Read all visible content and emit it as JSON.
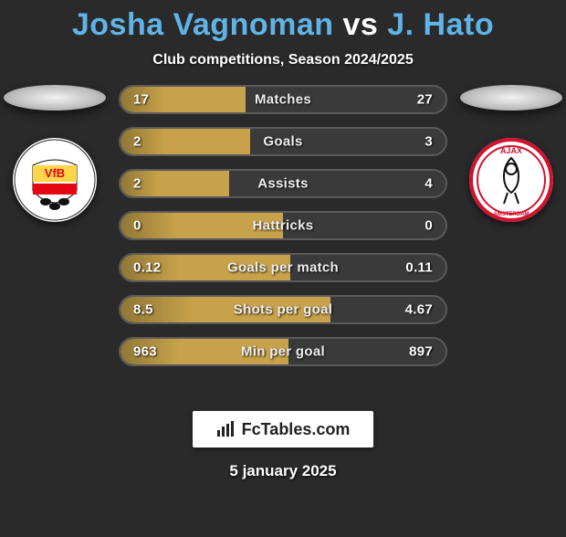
{
  "title": {
    "player1": "Josha Vagnoman",
    "vs": "vs",
    "player2": "J. Hato",
    "fontsize": 34
  },
  "subtitle": {
    "text": "Club competitions, Season 2024/2025",
    "fontsize": 16
  },
  "colors": {
    "background": "#2a2a2a",
    "title_accent": "#5fb3e6",
    "bar_border": "#5a5a5a",
    "seg_left_main": "#c7a24a",
    "seg_left_dark": "#8f7736",
    "seg_right": "#3a3a3a",
    "label_text": "#ececec",
    "value_text": "#ffffff"
  },
  "crest_left": {
    "name": "VfB Stuttgart",
    "bg": "#ffffff",
    "ring": "#e30613",
    "stripe": "#e30613",
    "text": "VfB"
  },
  "crest_right": {
    "name": "Ajax",
    "bg": "#ffffff",
    "ring": "#d2122e",
    "text": "AJAX"
  },
  "bars": [
    {
      "label": "Matches",
      "left": "17",
      "right": "27",
      "left_pct": 38.6,
      "right_pct": 61.4
    },
    {
      "label": "Goals",
      "left": "2",
      "right": "3",
      "left_pct": 40.0,
      "right_pct": 60.0
    },
    {
      "label": "Assists",
      "left": "2",
      "right": "4",
      "left_pct": 33.3,
      "right_pct": 66.7
    },
    {
      "label": "Hattricks",
      "left": "0",
      "right": "0",
      "left_pct": 50.0,
      "right_pct": 50.0
    },
    {
      "label": "Goals per match",
      "left": "0.12",
      "right": "0.11",
      "left_pct": 52.2,
      "right_pct": 47.8
    },
    {
      "label": "Shots per goal",
      "left": "8.5",
      "right": "4.67",
      "left_pct": 64.5,
      "right_pct": 35.5
    },
    {
      "label": "Min per goal",
      "left": "963",
      "right": "897",
      "left_pct": 51.8,
      "right_pct": 48.2
    }
  ],
  "bar_style": {
    "height": 32,
    "gap": 14,
    "border_width": 2,
    "font_size": 15
  },
  "footer": {
    "brand": "FcTables.com",
    "date": "5 january 2025"
  }
}
